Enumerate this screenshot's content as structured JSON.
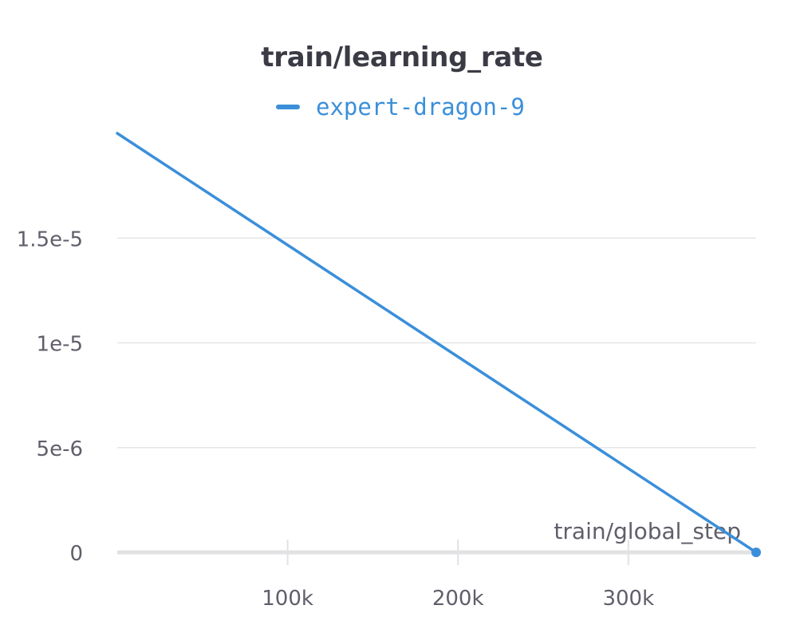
{
  "chart_data": {
    "type": "line",
    "title": "train/learning_rate",
    "xlabel": "train/global_step",
    "ylabel": "",
    "xlim": [
      0,
      375000
    ],
    "ylim": [
      0,
      2e-05
    ],
    "x_ticks": [
      100000,
      200000,
      300000
    ],
    "x_tick_labels": [
      "100k",
      "200k",
      "300k"
    ],
    "y_ticks": [
      0,
      5e-06,
      1e-05,
      1.5e-05
    ],
    "y_tick_labels": [
      "0",
      "5e-6",
      "1e-5",
      "1.5e-5"
    ],
    "grid": true,
    "legend_position": "top-center",
    "series": [
      {
        "name": "expert-dragon-9",
        "color": "#3b8fd9",
        "x": [
          0,
          375000
        ],
        "y": [
          2e-05,
          0
        ]
      }
    ]
  }
}
